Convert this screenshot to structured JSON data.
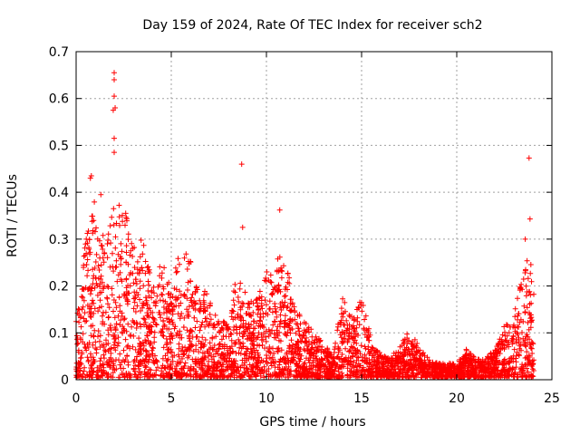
{
  "chart_data": {
    "type": "scatter",
    "title": "Day 159 of 2024, Rate Of TEC Index for receiver sch2",
    "xlabel": "GPS time / hours",
    "ylabel": "ROTI / TECUs",
    "xlim": [
      0,
      25
    ],
    "ylim": [
      0,
      0.7
    ],
    "x_ticks": [
      "0",
      "5",
      "10",
      "15",
      "20",
      "25"
    ],
    "y_ticks": [
      "0",
      "0.1",
      "0.2",
      "0.3",
      "0.4",
      "0.5",
      "0.6",
      "0.7"
    ],
    "grid": true,
    "marker": "+",
    "color": "#ff0000",
    "envelope_note": "approximate upper envelope of ROTI values by hour (dense cloud below)",
    "envelope": [
      {
        "t": 0.0,
        "roti": 0.13
      },
      {
        "t": 0.5,
        "roti": 0.29
      },
      {
        "t": 1.0,
        "roti": 0.39
      },
      {
        "t": 1.5,
        "roti": 0.3
      },
      {
        "t": 2.0,
        "roti": 0.37
      },
      {
        "t": 2.5,
        "roti": 0.37
      },
      {
        "t": 3.0,
        "roti": 0.28
      },
      {
        "t": 3.5,
        "roti": 0.3
      },
      {
        "t": 4.0,
        "roti": 0.2
      },
      {
        "t": 4.5,
        "roti": 0.25
      },
      {
        "t": 5.0,
        "roti": 0.19
      },
      {
        "t": 5.5,
        "roti": 0.29
      },
      {
        "t": 6.0,
        "roti": 0.25
      },
      {
        "t": 6.5,
        "roti": 0.19
      },
      {
        "t": 7.0,
        "roti": 0.18
      },
      {
        "t": 7.5,
        "roti": 0.12
      },
      {
        "t": 8.0,
        "roti": 0.13
      },
      {
        "t": 8.5,
        "roti": 0.23
      },
      {
        "t": 9.0,
        "roti": 0.18
      },
      {
        "t": 9.5,
        "roti": 0.17
      },
      {
        "t": 10.0,
        "roti": 0.23
      },
      {
        "t": 10.5,
        "roti": 0.26
      },
      {
        "t": 11.0,
        "roti": 0.26
      },
      {
        "t": 11.5,
        "roti": 0.15
      },
      {
        "t": 12.0,
        "roti": 0.12
      },
      {
        "t": 12.5,
        "roti": 0.1
      },
      {
        "t": 13.0,
        "roti": 0.07
      },
      {
        "t": 13.5,
        "roti": 0.05
      },
      {
        "t": 14.0,
        "roti": 0.17
      },
      {
        "t": 14.5,
        "roti": 0.13
      },
      {
        "t": 15.0,
        "roti": 0.18
      },
      {
        "t": 15.5,
        "roti": 0.08
      },
      {
        "t": 16.0,
        "roti": 0.05
      },
      {
        "t": 16.5,
        "roti": 0.04
      },
      {
        "t": 17.0,
        "roti": 0.07
      },
      {
        "t": 17.5,
        "roti": 0.1
      },
      {
        "t": 18.0,
        "roti": 0.07
      },
      {
        "t": 18.5,
        "roti": 0.04
      },
      {
        "t": 19.0,
        "roti": 0.03
      },
      {
        "t": 19.5,
        "roti": 0.03
      },
      {
        "t": 20.0,
        "roti": 0.03
      },
      {
        "t": 20.5,
        "roti": 0.06
      },
      {
        "t": 21.0,
        "roti": 0.04
      },
      {
        "t": 21.5,
        "roti": 0.04
      },
      {
        "t": 22.0,
        "roti": 0.06
      },
      {
        "t": 22.5,
        "roti": 0.11
      },
      {
        "t": 23.0,
        "roti": 0.13
      },
      {
        "t": 23.5,
        "roti": 0.26
      },
      {
        "t": 24.0,
        "roti": 0.24
      }
    ],
    "outliers": [
      {
        "t": 2.0,
        "roti": 0.655
      },
      {
        "t": 2.0,
        "roti": 0.64
      },
      {
        "t": 2.0,
        "roti": 0.605
      },
      {
        "t": 2.05,
        "roti": 0.58
      },
      {
        "t": 1.95,
        "roti": 0.575
      },
      {
        "t": 2.0,
        "roti": 0.515
      },
      {
        "t": 2.0,
        "roti": 0.485
      },
      {
        "t": 0.8,
        "roti": 0.435
      },
      {
        "t": 0.75,
        "roti": 0.43
      },
      {
        "t": 1.3,
        "roti": 0.395
      },
      {
        "t": 8.7,
        "roti": 0.46
      },
      {
        "t": 8.75,
        "roti": 0.325
      },
      {
        "t": 10.7,
        "roti": 0.362
      },
      {
        "t": 23.8,
        "roti": 0.473
      },
      {
        "t": 23.85,
        "roti": 0.343
      },
      {
        "t": 23.6,
        "roti": 0.3
      }
    ],
    "sample_seed": 159,
    "sample_count": 3600
  }
}
